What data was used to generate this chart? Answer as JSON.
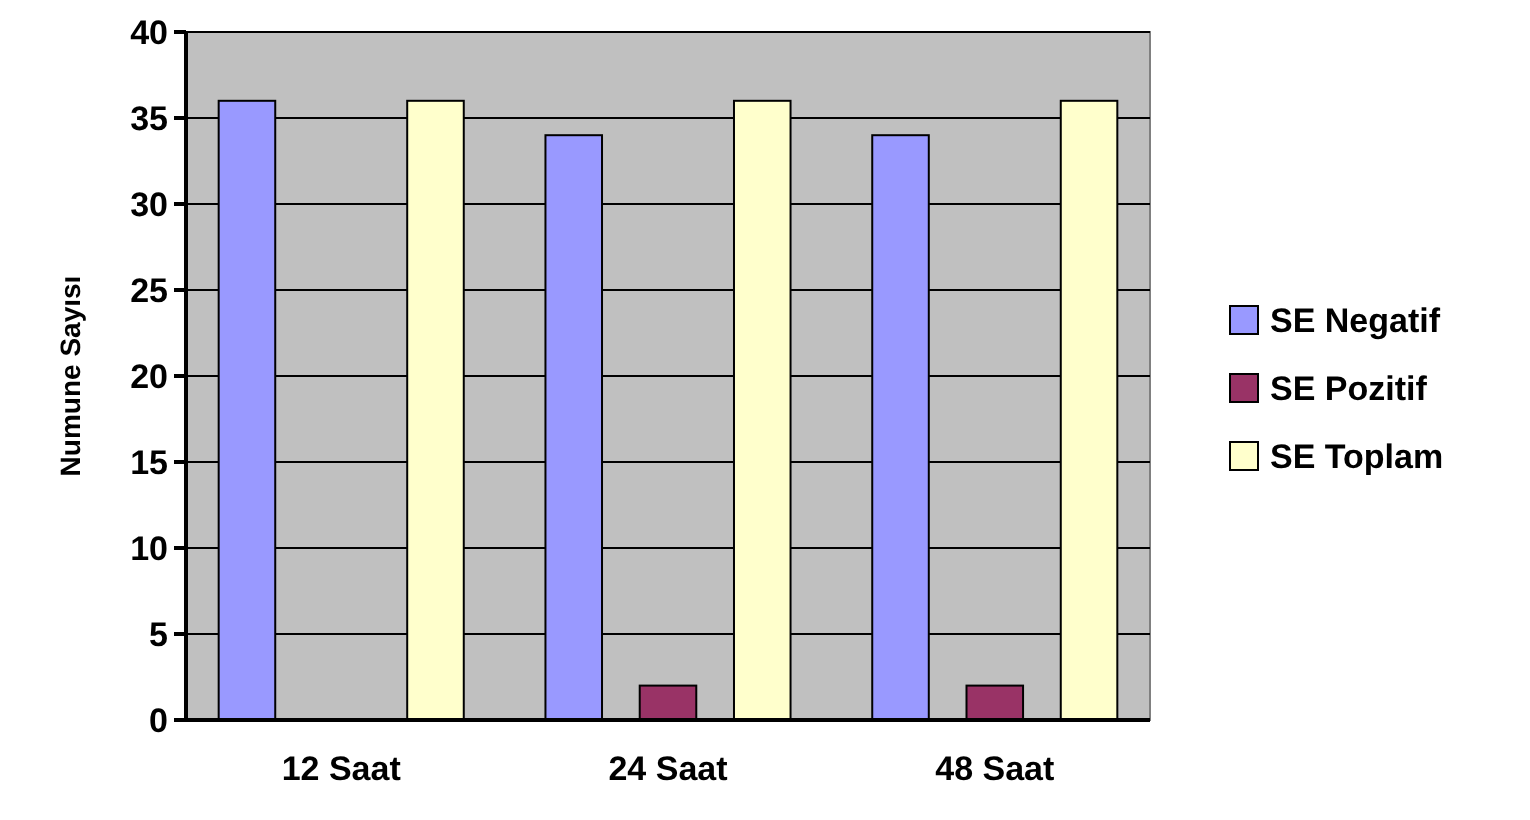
{
  "chart_data": {
    "type": "bar",
    "ylabel": "Numune Sayısı",
    "categories": [
      "12 Saat",
      "24 Saat",
      "48 Saat"
    ],
    "series": [
      {
        "name": "SE Negatif",
        "color": "#9999ff",
        "values": [
          36,
          34,
          34
        ]
      },
      {
        "name": "SE Pozitif",
        "color": "#993366",
        "values": [
          0,
          2,
          2
        ]
      },
      {
        "name": "SE Toplam",
        "color": "#ffffcc",
        "values": [
          36,
          36,
          36
        ]
      }
    ],
    "ylim": [
      0,
      40
    ],
    "yticks": [
      0,
      5,
      10,
      15,
      20,
      25,
      30,
      35,
      40
    ],
    "grid": "y",
    "legend": "right"
  }
}
